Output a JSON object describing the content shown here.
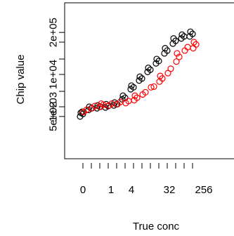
{
  "chart_data": {
    "type": "scatter",
    "title": "",
    "xlabel": "True conc",
    "ylabel": "Chip value",
    "y_scale": "log",
    "x_tick_labels": [
      "0",
      "1",
      "4",
      "32",
      "256"
    ],
    "y_tick_labels": [
      "5e+02",
      "1e+03",
      "1e+04",
      "2e+05"
    ],
    "colors": {
      "series_a": "#000000",
      "series_b": "#ff0000"
    },
    "x_levels": [
      0,
      0.25,
      0.5,
      1,
      2,
      4,
      8,
      16,
      32,
      64,
      128,
      256,
      512,
      1024
    ],
    "series": [
      {
        "values": [
          [
            500,
            600,
            650,
            700
          ],
          [
            800,
            900,
            1000
          ],
          [
            900,
            1000,
            1100
          ],
          [
            950,
            1050,
            1200
          ],
          [
            1100,
            1200,
            1350
          ],
          [
            1700,
            1900,
            2200
          ],
          [
            3500,
            4000,
            4500
          ],
          [
            6500,
            7500,
            8500
          ],
          [
            12000,
            14000,
            16000
          ],
          [
            22000,
            26000,
            30000
          ],
          [
            45000,
            55000,
            65000
          ],
          [
            90000,
            110000,
            130000
          ],
          [
            130000,
            150000,
            170000
          ],
          [
            150000,
            180000,
            210000
          ]
        ]
      },
      {
        "values": [
          [
            700,
            800
          ],
          [
            900,
            1050
          ],
          [
            1000,
            1150,
            1250
          ],
          [
            1100,
            1250
          ],
          [
            1200,
            1400
          ],
          [
            1300,
            1500
          ],
          [
            1600,
            1900,
            2200
          ],
          [
            2400,
            2800
          ],
          [
            4000,
            4200
          ],
          [
            6000,
            7500,
            9000
          ],
          [
            11000,
            15000
          ],
          [
            25000,
            35000,
            45000
          ],
          [
            55000,
            70000
          ],
          [
            65000,
            85000,
            100000
          ]
        ]
      }
    ]
  }
}
